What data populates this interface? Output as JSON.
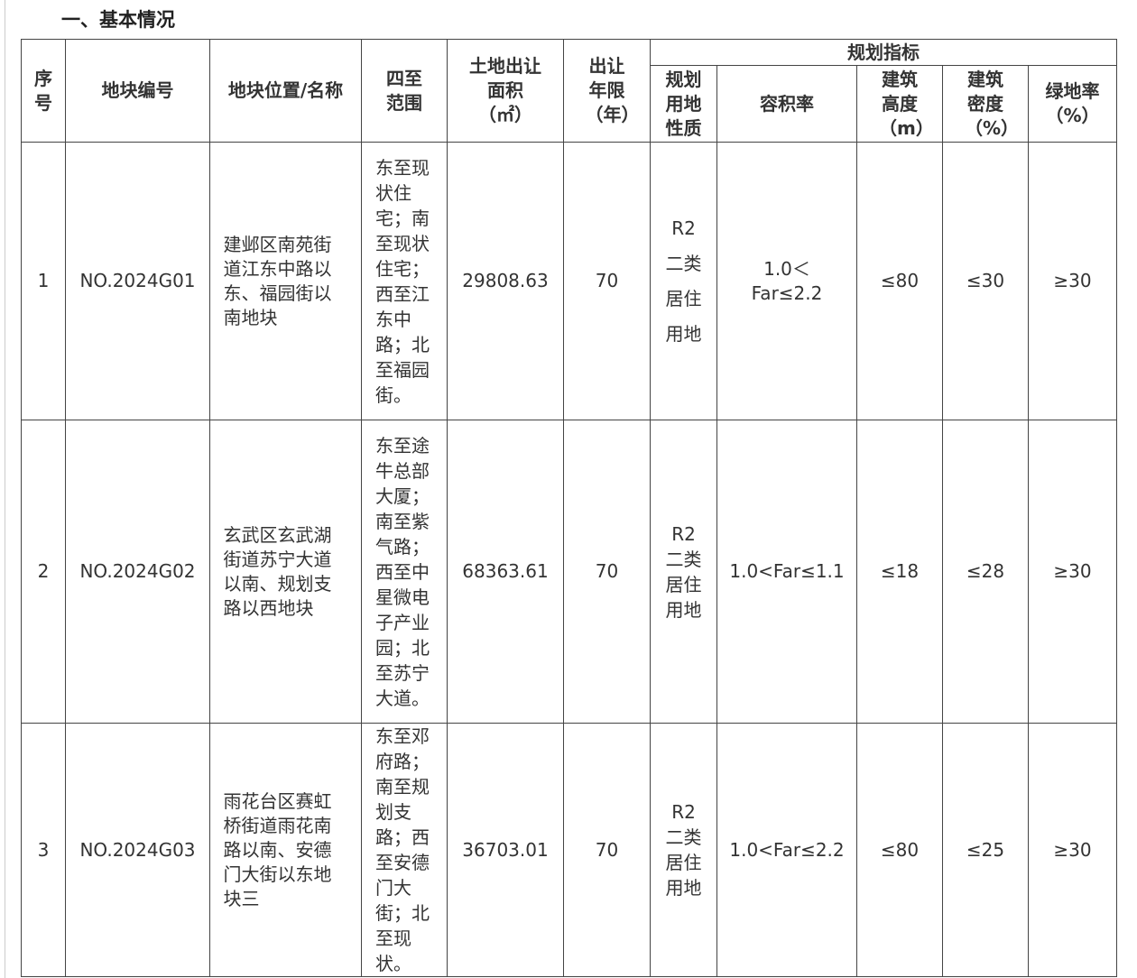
{
  "section_title": "一、基本情况",
  "headers": {
    "seq": "序号",
    "code": "地块编号",
    "location": "地块位置/名称",
    "bounds": "四至范围",
    "area": "土地出让面积（㎡）",
    "term": "出让年限（年）",
    "planning": "规划指标",
    "land_use": "规划用地性质",
    "far": "容积率",
    "height": "建筑高度（m）",
    "density": "建筑密度（%）",
    "green": "绿地率（%）"
  },
  "rows": [
    {
      "seq": "1",
      "code": "NO.2024G01",
      "location": "建邺区南苑街道江东中路以东、福园街以南地块",
      "bounds": "东至现状住宅；南至现状住宅；西至江东中路；北至福园街。",
      "area": "29808.63",
      "term": "70",
      "land_use": "R2二类居住用地",
      "far": "1.0＜Far≤2.2",
      "height": "≤80",
      "density": "≤30",
      "green": "≥30"
    },
    {
      "seq": "2",
      "code": "NO.2024G02",
      "location": "玄武区玄武湖街道苏宁大道以南、规划支路以西地块",
      "bounds": "东至途牛总部大厦；南至紫气路；西至中星微电子产业园；北至苏宁大道。",
      "area": "68363.61",
      "term": "70",
      "land_use": "R2二类居住用地",
      "far": "1.0<Far≤1.1",
      "height": "≤18",
      "density": "≤28",
      "green": "≥30"
    },
    {
      "seq": "3",
      "code": "NO.2024G03",
      "location": "雨花台区赛虹桥街道雨花南路以南、安德门大街以东地块三",
      "bounds": "东至邓府路；南至规划支路；西至安德门大街；北至现状。",
      "area": "36703.01",
      "term": "70",
      "land_use": "R2二类居住用地",
      "far": "1.0<Far≤2.2",
      "height": "≤80",
      "density": "≤25",
      "green": "≥30"
    }
  ]
}
